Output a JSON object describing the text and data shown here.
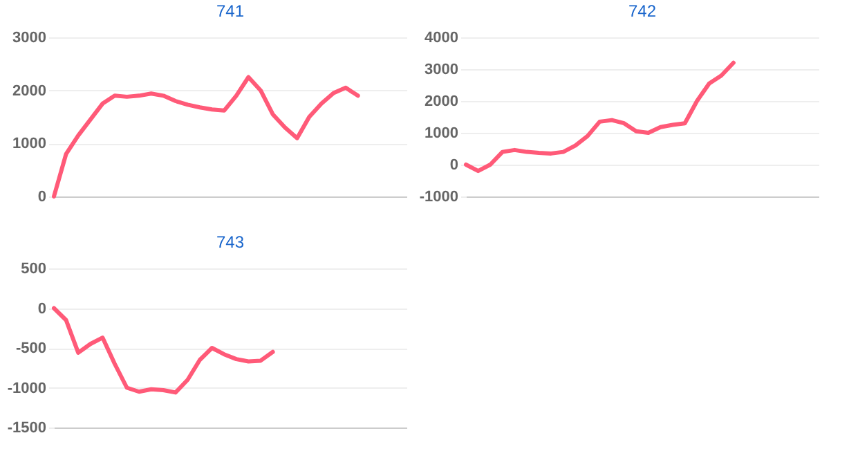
{
  "chart_data": [
    {
      "type": "line",
      "title": "741",
      "categories": [
        null,
        null,
        null,
        null,
        null,
        null,
        null,
        null,
        null,
        null,
        null,
        null,
        null,
        null,
        null,
        null,
        null,
        null,
        null,
        null,
        null,
        null,
        null,
        null,
        null,
        null,
        null,
        null,
        null,
        null
      ],
      "values": [
        0,
        800,
        1150,
        1450,
        1750,
        1900,
        1880,
        1900,
        1940,
        1900,
        1800,
        1730,
        1680,
        1640,
        1620,
        1900,
        2250,
        2000,
        1550,
        1300,
        1100,
        1500,
        1750,
        1950,
        2050,
        1900,
        null,
        null,
        null,
        null
      ],
      "color": "#ff5a78",
      "ylim": [
        0,
        3000
      ],
      "yticks": [
        0,
        1000,
        2000,
        3000
      ],
      "grid": "y",
      "tick_labels": "y"
    },
    {
      "type": "line",
      "title": "742",
      "categories": [
        null,
        null,
        null,
        null,
        null,
        null,
        null,
        null,
        null,
        null,
        null,
        null,
        null,
        null,
        null,
        null,
        null,
        null,
        null,
        null,
        null,
        null,
        null,
        null,
        null,
        null,
        null,
        null,
        null,
        null
      ],
      "values": [
        0,
        -200,
        0,
        400,
        460,
        400,
        370,
        350,
        400,
        600,
        900,
        1350,
        1400,
        1300,
        1050,
        1000,
        1180,
        1250,
        1300,
        2000,
        2550,
        2800,
        3200,
        null,
        null,
        null,
        null,
        null,
        null,
        null
      ],
      "color": "#ff5a78",
      "ylim": [
        -1000,
        4000
      ],
      "yticks": [
        -1000,
        0,
        1000,
        2000,
        3000,
        4000
      ],
      "grid": "y",
      "tick_labels": "y"
    },
    {
      "type": "line",
      "title": "743",
      "categories": [
        null,
        null,
        null,
        null,
        null,
        null,
        null,
        null,
        null,
        null,
        null,
        null,
        null,
        null,
        null,
        null,
        null,
        null,
        null,
        null,
        null,
        null,
        null,
        null,
        null,
        null,
        null,
        null,
        null,
        null
      ],
      "values": [
        0,
        -150,
        -560,
        -450,
        -370,
        -700,
        -1000,
        -1050,
        -1020,
        -1030,
        -1060,
        -900,
        -650,
        -500,
        -580,
        -640,
        -670,
        -660,
        -550,
        null,
        null,
        null,
        null,
        null,
        null,
        null,
        null,
        null,
        null,
        null
      ],
      "color": "#ff5a78",
      "ylim": [
        -1500,
        500
      ],
      "yticks": [
        -1500,
        -1000,
        -500,
        0,
        500
      ],
      "grid": "y",
      "tick_labels": "y"
    }
  ]
}
